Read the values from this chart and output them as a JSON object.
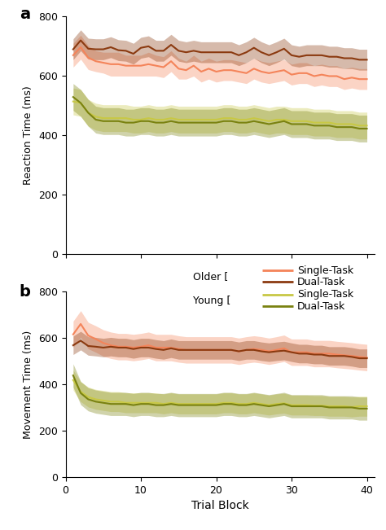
{
  "x": [
    1,
    2,
    3,
    4,
    5,
    6,
    7,
    8,
    9,
    10,
    11,
    12,
    13,
    14,
    15,
    16,
    17,
    18,
    19,
    20,
    21,
    22,
    23,
    24,
    25,
    26,
    27,
    28,
    29,
    30,
    31,
    32,
    33,
    34,
    35,
    36,
    37,
    38,
    39,
    40
  ],
  "rt_older_single_mean": [
    668,
    695,
    660,
    648,
    643,
    638,
    638,
    633,
    633,
    633,
    638,
    633,
    628,
    648,
    623,
    618,
    633,
    613,
    623,
    613,
    618,
    618,
    613,
    608,
    623,
    613,
    608,
    613,
    618,
    603,
    608,
    608,
    598,
    603,
    598,
    598,
    588,
    593,
    588,
    588
  ],
  "rt_older_single_lo": [
    628,
    655,
    620,
    613,
    608,
    598,
    598,
    598,
    598,
    598,
    598,
    598,
    593,
    613,
    588,
    588,
    598,
    578,
    588,
    578,
    583,
    583,
    578,
    573,
    588,
    578,
    573,
    578,
    583,
    568,
    573,
    573,
    563,
    568,
    563,
    563,
    553,
    558,
    553,
    553
  ],
  "rt_older_single_hi": [
    708,
    735,
    700,
    683,
    678,
    678,
    678,
    668,
    668,
    668,
    678,
    668,
    663,
    683,
    658,
    648,
    668,
    648,
    658,
    648,
    653,
    653,
    648,
    643,
    658,
    648,
    643,
    648,
    653,
    638,
    643,
    643,
    633,
    638,
    633,
    633,
    623,
    628,
    623,
    623
  ],
  "rt_older_dual_mean": [
    688,
    718,
    690,
    688,
    688,
    695,
    685,
    683,
    673,
    693,
    698,
    683,
    683,
    703,
    683,
    678,
    683,
    678,
    678,
    678,
    678,
    678,
    668,
    678,
    693,
    678,
    668,
    678,
    690,
    668,
    663,
    668,
    668,
    668,
    663,
    663,
    658,
    658,
    653,
    653
  ],
  "rt_older_dual_lo": [
    653,
    683,
    655,
    653,
    653,
    660,
    650,
    648,
    638,
    658,
    663,
    648,
    648,
    668,
    648,
    643,
    648,
    643,
    643,
    643,
    643,
    643,
    633,
    643,
    658,
    643,
    633,
    643,
    655,
    633,
    628,
    633,
    633,
    633,
    628,
    628,
    623,
    623,
    618,
    618
  ],
  "rt_older_dual_hi": [
    723,
    753,
    725,
    723,
    723,
    730,
    720,
    718,
    708,
    728,
    733,
    718,
    718,
    738,
    718,
    713,
    718,
    713,
    713,
    713,
    713,
    713,
    703,
    713,
    728,
    713,
    703,
    713,
    725,
    703,
    698,
    703,
    703,
    703,
    698,
    698,
    693,
    693,
    688,
    688
  ],
  "rt_young_single_mean": [
    513,
    508,
    475,
    462,
    457,
    457,
    457,
    457,
    452,
    452,
    457,
    452,
    452,
    457,
    452,
    452,
    452,
    452,
    452,
    452,
    457,
    457,
    452,
    452,
    457,
    452,
    447,
    452,
    452,
    447,
    447,
    447,
    442,
    442,
    442,
    437,
    437,
    437,
    432,
    432
  ],
  "rt_young_single_lo": [
    468,
    463,
    430,
    417,
    412,
    412,
    412,
    412,
    407,
    407,
    412,
    407,
    407,
    412,
    407,
    407,
    407,
    407,
    407,
    407,
    412,
    412,
    407,
    407,
    412,
    407,
    402,
    407,
    407,
    402,
    402,
    402,
    397,
    397,
    397,
    392,
    392,
    392,
    387,
    387
  ],
  "rt_young_single_hi": [
    558,
    553,
    520,
    507,
    502,
    502,
    502,
    502,
    497,
    497,
    502,
    497,
    497,
    502,
    497,
    497,
    497,
    497,
    497,
    497,
    502,
    502,
    497,
    497,
    502,
    497,
    492,
    497,
    497,
    492,
    492,
    492,
    487,
    487,
    487,
    482,
    482,
    482,
    477,
    477
  ],
  "rt_young_dual_mean": [
    528,
    508,
    475,
    452,
    447,
    447,
    447,
    442,
    442,
    447,
    447,
    442,
    442,
    447,
    442,
    442,
    442,
    442,
    442,
    442,
    447,
    447,
    442,
    442,
    447,
    442,
    437,
    442,
    447,
    437,
    437,
    437,
    432,
    432,
    432,
    427,
    427,
    427,
    422,
    422
  ],
  "rt_young_dual_lo": [
    483,
    463,
    430,
    407,
    402,
    402,
    402,
    397,
    397,
    402,
    402,
    397,
    397,
    402,
    397,
    397,
    397,
    397,
    397,
    397,
    402,
    402,
    397,
    397,
    402,
    397,
    392,
    397,
    402,
    392,
    392,
    392,
    387,
    387,
    387,
    382,
    382,
    382,
    377,
    377
  ],
  "rt_young_dual_hi": [
    573,
    553,
    520,
    497,
    492,
    492,
    492,
    487,
    487,
    492,
    492,
    487,
    487,
    492,
    487,
    487,
    487,
    487,
    487,
    487,
    492,
    492,
    487,
    487,
    492,
    487,
    482,
    487,
    492,
    482,
    482,
    482,
    477,
    477,
    477,
    472,
    472,
    472,
    467,
    467
  ],
  "mt_older_single_mean": [
    615,
    660,
    610,
    595,
    578,
    568,
    562,
    562,
    558,
    562,
    568,
    558,
    558,
    558,
    552,
    548,
    548,
    548,
    548,
    548,
    548,
    548,
    542,
    548,
    552,
    548,
    542,
    548,
    555,
    538,
    538,
    538,
    532,
    532,
    532,
    528,
    525,
    522,
    518,
    515
  ],
  "mt_older_single_lo": [
    558,
    603,
    553,
    538,
    521,
    511,
    505,
    505,
    501,
    505,
    511,
    501,
    501,
    501,
    495,
    491,
    491,
    491,
    491,
    491,
    491,
    491,
    485,
    491,
    495,
    491,
    485,
    491,
    498,
    481,
    481,
    481,
    475,
    475,
    475,
    471,
    468,
    465,
    461,
    458
  ],
  "mt_older_single_hi": [
    672,
    717,
    667,
    652,
    635,
    625,
    619,
    619,
    615,
    619,
    625,
    615,
    615,
    615,
    609,
    605,
    605,
    605,
    605,
    605,
    605,
    605,
    599,
    605,
    609,
    605,
    599,
    605,
    612,
    595,
    595,
    595,
    589,
    589,
    589,
    585,
    582,
    579,
    575,
    572
  ],
  "mt_older_dual_mean": [
    568,
    588,
    565,
    562,
    558,
    562,
    558,
    558,
    552,
    558,
    558,
    552,
    548,
    555,
    548,
    548,
    548,
    548,
    548,
    548,
    548,
    548,
    542,
    548,
    548,
    542,
    538,
    542,
    545,
    538,
    532,
    532,
    528,
    528,
    522,
    522,
    522,
    518,
    512,
    512
  ],
  "mt_older_dual_lo": [
    528,
    548,
    525,
    522,
    518,
    522,
    518,
    518,
    512,
    518,
    518,
    512,
    508,
    515,
    508,
    508,
    508,
    508,
    508,
    508,
    508,
    508,
    502,
    508,
    508,
    502,
    498,
    502,
    505,
    498,
    492,
    492,
    488,
    488,
    482,
    482,
    482,
    478,
    472,
    472
  ],
  "mt_older_dual_hi": [
    608,
    628,
    605,
    602,
    598,
    602,
    598,
    598,
    592,
    598,
    598,
    592,
    588,
    595,
    588,
    588,
    588,
    588,
    588,
    588,
    588,
    588,
    582,
    588,
    588,
    582,
    578,
    582,
    585,
    578,
    572,
    572,
    568,
    568,
    562,
    562,
    562,
    558,
    552,
    552
  ],
  "mt_young_single_mean": [
    418,
    368,
    345,
    335,
    330,
    325,
    325,
    320,
    320,
    320,
    320,
    320,
    315,
    320,
    315,
    315,
    315,
    315,
    315,
    315,
    320,
    320,
    315,
    315,
    320,
    315,
    310,
    315,
    318,
    310,
    310,
    310,
    308,
    308,
    305,
    305,
    305,
    302,
    305,
    305
  ],
  "mt_young_single_lo": [
    375,
    325,
    302,
    292,
    287,
    282,
    282,
    277,
    277,
    277,
    277,
    277,
    272,
    277,
    272,
    272,
    272,
    272,
    272,
    272,
    277,
    277,
    272,
    272,
    277,
    272,
    267,
    272,
    275,
    267,
    267,
    267,
    265,
    265,
    262,
    262,
    262,
    259,
    262,
    262
  ],
  "mt_young_single_hi": [
    461,
    411,
    388,
    378,
    373,
    368,
    368,
    363,
    363,
    363,
    363,
    363,
    358,
    363,
    358,
    358,
    358,
    358,
    358,
    358,
    363,
    363,
    358,
    358,
    363,
    358,
    353,
    358,
    361,
    353,
    353,
    353,
    351,
    351,
    348,
    348,
    348,
    345,
    348,
    348
  ],
  "mt_young_dual_mean": [
    438,
    362,
    335,
    325,
    320,
    315,
    315,
    315,
    310,
    315,
    315,
    310,
    310,
    315,
    310,
    310,
    310,
    310,
    310,
    310,
    315,
    315,
    310,
    310,
    315,
    310,
    305,
    310,
    315,
    305,
    305,
    305,
    305,
    305,
    300,
    300,
    300,
    300,
    295,
    295
  ],
  "mt_young_dual_lo": [
    388,
    312,
    285,
    275,
    270,
    265,
    265,
    265,
    260,
    265,
    265,
    260,
    260,
    265,
    260,
    260,
    260,
    260,
    260,
    260,
    265,
    265,
    260,
    260,
    265,
    260,
    255,
    260,
    265,
    255,
    255,
    255,
    255,
    255,
    250,
    250,
    250,
    250,
    245,
    245
  ],
  "mt_young_dual_hi": [
    488,
    412,
    385,
    375,
    370,
    365,
    365,
    365,
    360,
    365,
    365,
    360,
    360,
    365,
    360,
    360,
    360,
    360,
    360,
    360,
    365,
    365,
    360,
    360,
    365,
    360,
    355,
    360,
    365,
    355,
    355,
    355,
    355,
    355,
    350,
    350,
    350,
    350,
    345,
    345
  ],
  "older_single_color": "#F4845A",
  "older_dual_color": "#8B3A10",
  "young_single_color": "#C8C845",
  "young_dual_color": "#7A8210",
  "older_single_fill_alpha": 0.35,
  "older_dual_fill_alpha": 0.35,
  "young_single_fill_alpha": 0.35,
  "young_dual_fill_alpha": 0.35,
  "ylim": [
    0,
    800
  ],
  "yticks": [
    0,
    200,
    400,
    600,
    800
  ],
  "xlim": [
    0,
    41
  ],
  "xticks": [
    0,
    10,
    20,
    30,
    40
  ],
  "ylabel_a": "Reaction Time (ms)",
  "ylabel_b": "Movement Time (ms)",
  "xlabel": "Trial Block",
  "label_a": "a",
  "label_b": "b",
  "legend_older": "Older [",
  "legend_young": "Young [",
  "legend_single": "Single-Task",
  "legend_dual": "Dual-Task"
}
